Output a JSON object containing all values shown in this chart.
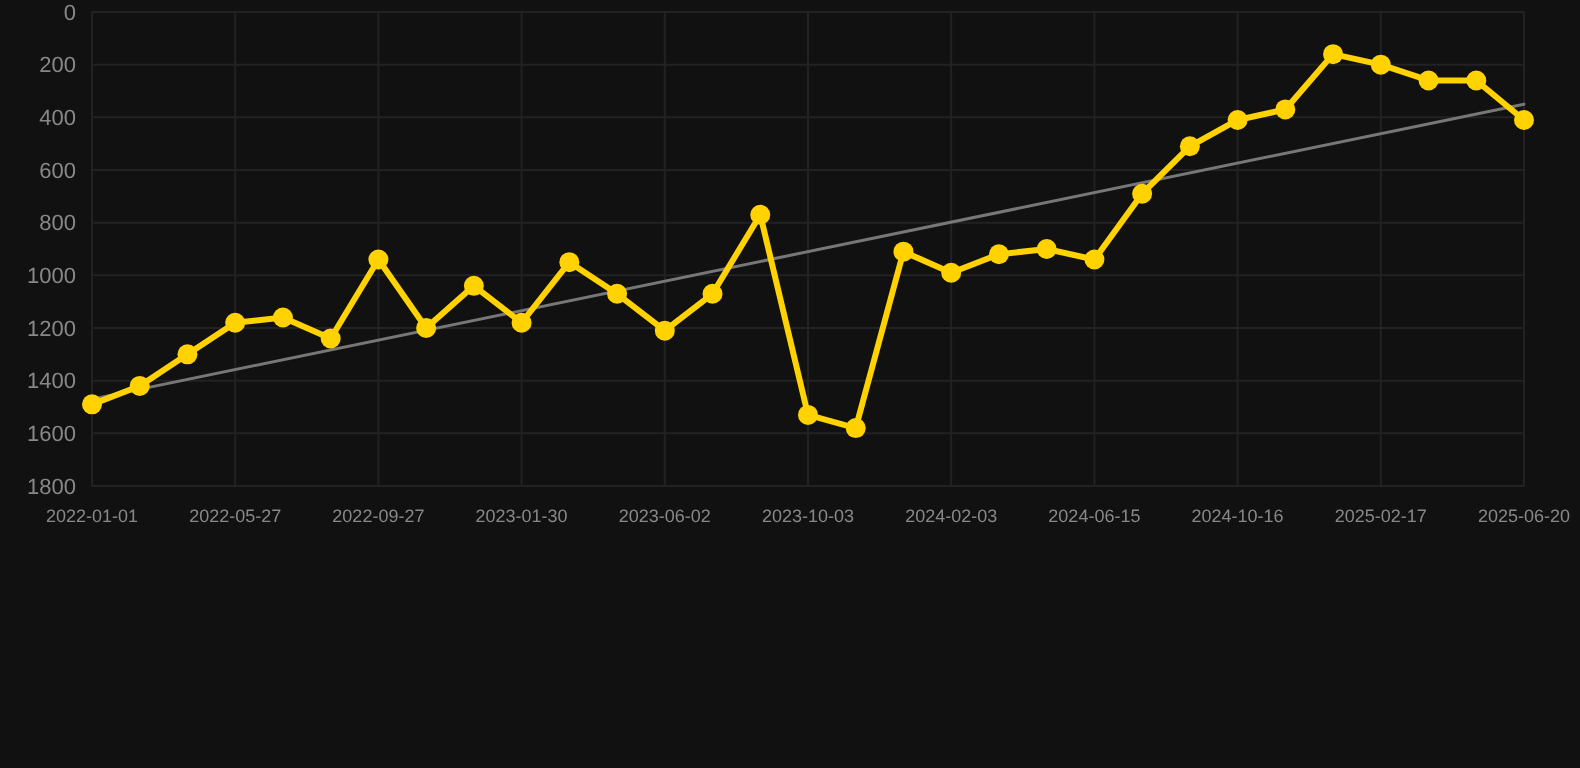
{
  "chart_data": {
    "type": "line",
    "categories": [
      "2022-01-01",
      null,
      null,
      "2022-05-27",
      null,
      null,
      "2022-09-27",
      null,
      null,
      "2023-01-30",
      null,
      null,
      "2023-06-02",
      null,
      null,
      "2023-10-03",
      null,
      null,
      "2024-02-03",
      null,
      null,
      "2024-06-15",
      null,
      null,
      "2024-10-16",
      null,
      null,
      "2025-02-17",
      null,
      null,
      "2025-06-20"
    ],
    "series": [
      {
        "color": "#ffd200",
        "marker": "circle",
        "values": [
          1490,
          1420,
          1300,
          1180,
          1160,
          1240,
          940,
          1200,
          1040,
          1180,
          950,
          1070,
          1210,
          1070,
          770,
          1530,
          1580,
          910,
          990,
          920,
          900,
          940,
          690,
          510,
          410,
          370,
          160,
          200,
          260,
          260,
          410
        ]
      },
      {
        "type": "line",
        "color": "#777777",
        "marker": "none",
        "values": [
          1470,
          null,
          null,
          null,
          null,
          null,
          null,
          null,
          null,
          null,
          null,
          null,
          null,
          null,
          null,
          null,
          null,
          null,
          null,
          null,
          null,
          null,
          null,
          null,
          null,
          null,
          null,
          null,
          null,
          null,
          350
        ]
      }
    ],
    "ylim": [
      1800,
      0
    ],
    "yticks": [
      0,
      200,
      400,
      600,
      800,
      1000,
      1200,
      1400,
      1600,
      1800
    ],
    "grid": true
  }
}
